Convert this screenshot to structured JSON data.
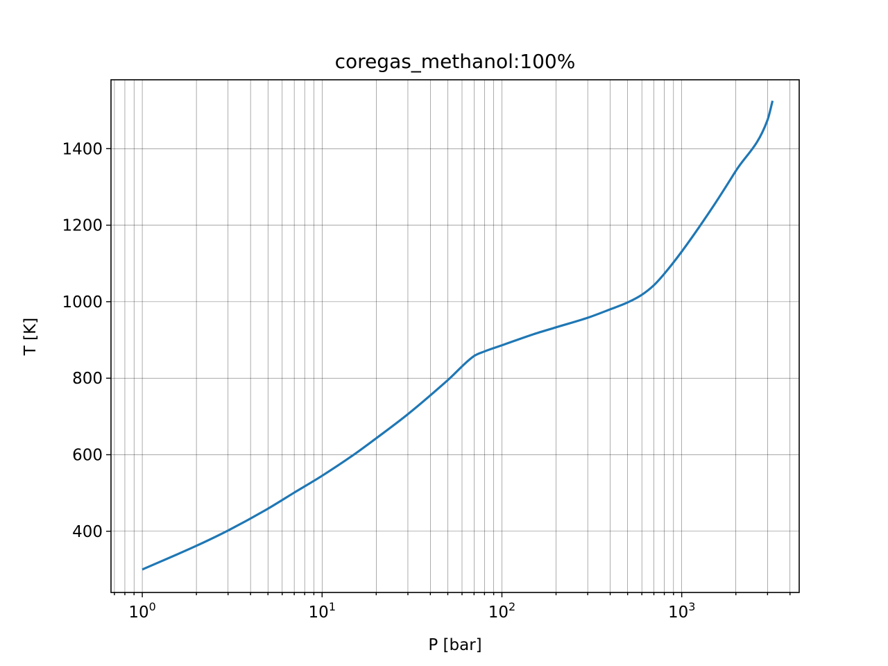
{
  "chart_data": {
    "type": "line",
    "title": "coregas_methanol:100%",
    "xlabel": "P [bar]",
    "ylabel": "T [K]",
    "xscale": "log",
    "xlim": [
      0.67,
      4500
    ],
    "ylim": [
      240,
      1580
    ],
    "grid": "on (major and minor)",
    "xticks": [
      {
        "base": "10",
        "exp": "0"
      },
      {
        "base": "10",
        "exp": "1"
      },
      {
        "base": "10",
        "exp": "2"
      },
      {
        "base": "10",
        "exp": "3"
      }
    ],
    "yticks": [
      "400",
      "600",
      "800",
      "1000",
      "1200",
      "1400"
    ],
    "series": [
      {
        "color": "#1f77b4",
        "x": [
          1,
          2,
          3,
          5,
          7,
          10,
          15,
          20,
          30,
          50,
          70,
          80,
          100,
          150,
          200,
          300,
          400,
          500,
          600,
          700,
          800,
          1000,
          1500,
          2000,
          3000,
          3200
        ],
        "y": [
          300,
          362,
          402,
          459,
          501,
          545,
          600,
          643,
          706,
          795,
          858,
          870,
          886,
          915,
          933,
          958,
          980,
          998,
          1018,
          1043,
          1073,
          1131,
          1250,
          1342,
          1475,
          1525
        ]
      }
    ]
  }
}
